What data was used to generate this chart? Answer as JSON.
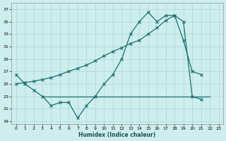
{
  "background_color": "#ceeeed",
  "grid_color": "#a8d8d6",
  "line_color": "#1a7070",
  "xlabel": "Humidex (Indice chaleur)",
  "xlim": [
    -0.5,
    23.5
  ],
  "ylim": [
    18.5,
    38.0
  ],
  "yticks": [
    19,
    21,
    23,
    25,
    27,
    29,
    31,
    33,
    35,
    37
  ],
  "xticks": [
    0,
    1,
    2,
    3,
    4,
    5,
    6,
    7,
    8,
    9,
    10,
    11,
    12,
    13,
    14,
    15,
    16,
    17,
    18,
    19,
    20,
    21,
    22,
    23
  ],
  "line1_x": [
    0,
    1,
    2,
    3,
    4,
    5,
    6,
    7,
    8,
    9,
    10,
    11,
    12,
    13,
    14,
    15,
    16,
    17,
    18,
    19,
    20,
    21
  ],
  "line1_y": [
    26.5,
    25.0,
    24.0,
    23.0,
    21.5,
    22.0,
    22.0,
    19.5,
    21.5,
    23.0,
    25.0,
    26.5,
    29.0,
    33.0,
    35.0,
    36.5,
    35.0,
    36.0,
    36.0,
    35.0,
    23.0,
    22.5
  ],
  "line2_x": [
    3,
    4,
    5,
    6,
    7,
    8,
    9,
    10,
    11,
    12,
    13,
    14,
    15,
    16,
    17,
    18,
    19,
    20,
    21,
    22
  ],
  "line2_y": [
    23.0,
    23.0,
    23.0,
    23.0,
    23.0,
    23.0,
    23.0,
    23.0,
    23.0,
    23.0,
    23.0,
    23.0,
    23.0,
    23.0,
    23.0,
    23.0,
    23.0,
    23.0,
    23.0,
    23.0
  ],
  "line3_x": [
    0,
    1,
    2,
    3,
    4,
    5,
    6,
    7,
    8,
    9,
    10,
    11,
    12,
    13,
    14,
    15,
    16,
    17,
    18,
    19,
    20,
    21
  ],
  "line3_y": [
    25.0,
    25.2,
    25.4,
    25.7,
    26.0,
    26.5,
    27.0,
    27.5,
    28.0,
    28.7,
    29.5,
    30.2,
    30.8,
    31.5,
    32.0,
    33.0,
    34.0,
    35.2,
    36.0,
    32.0,
    27.0,
    26.5
  ]
}
